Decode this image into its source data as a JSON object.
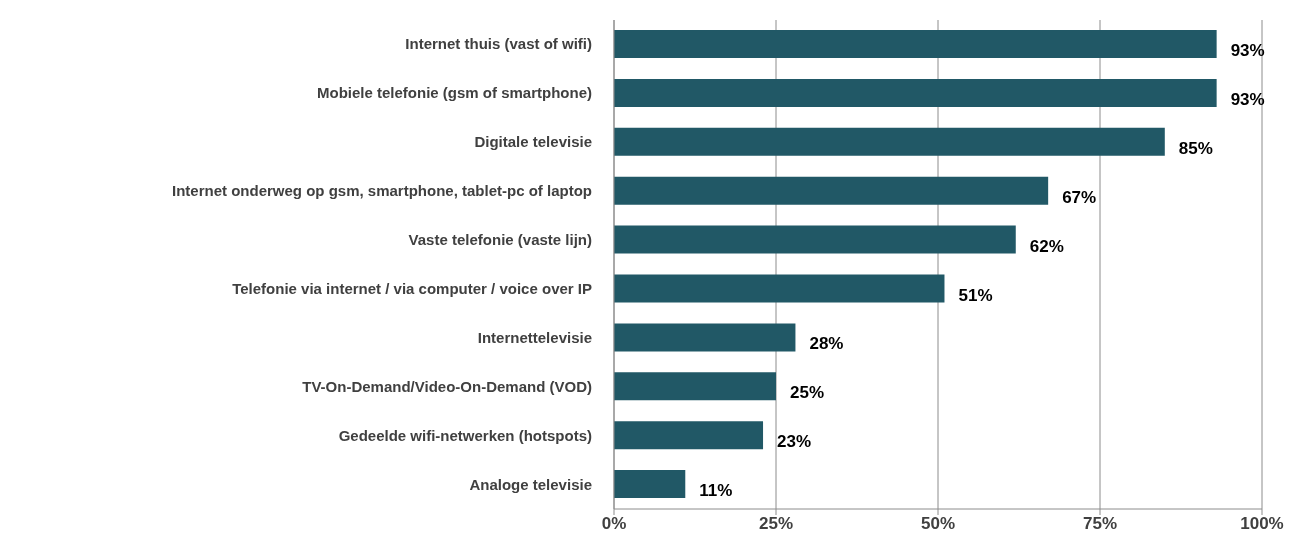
{
  "chart_data": {
    "type": "bar",
    "orientation": "horizontal",
    "categories": [
      "Internet thuis (vast of wifi)",
      "Mobiele telefonie (gsm of smartphone)",
      "Digitale televisie",
      "Internet onderweg op gsm, smartphone, tablet-pc of laptop",
      "Vaste telefonie (vaste lijn)",
      "Telefonie via internet / via computer / voice over IP",
      "Internettelevisie",
      "TV-On-Demand/Video-On-Demand (VOD)",
      "Gedeelde wifi-netwerken (hotspots)",
      "Analoge televisie"
    ],
    "values": [
      93,
      93,
      85,
      67,
      62,
      51,
      28,
      25,
      23,
      11
    ],
    "value_labels": [
      "93%",
      "93%",
      "85%",
      "67%",
      "62%",
      "51%",
      "28%",
      "25%",
      "23%",
      "11%"
    ],
    "color": "#215866",
    "xlim": [
      0,
      100
    ],
    "xticks": [
      {
        "value": 0,
        "label": "0%"
      },
      {
        "value": 25,
        "label": "25%"
      },
      {
        "value": 50,
        "label": "50%"
      },
      {
        "value": 75,
        "label": "75%"
      },
      {
        "value": 100,
        "label": "100%"
      }
    ],
    "grid": "x"
  }
}
